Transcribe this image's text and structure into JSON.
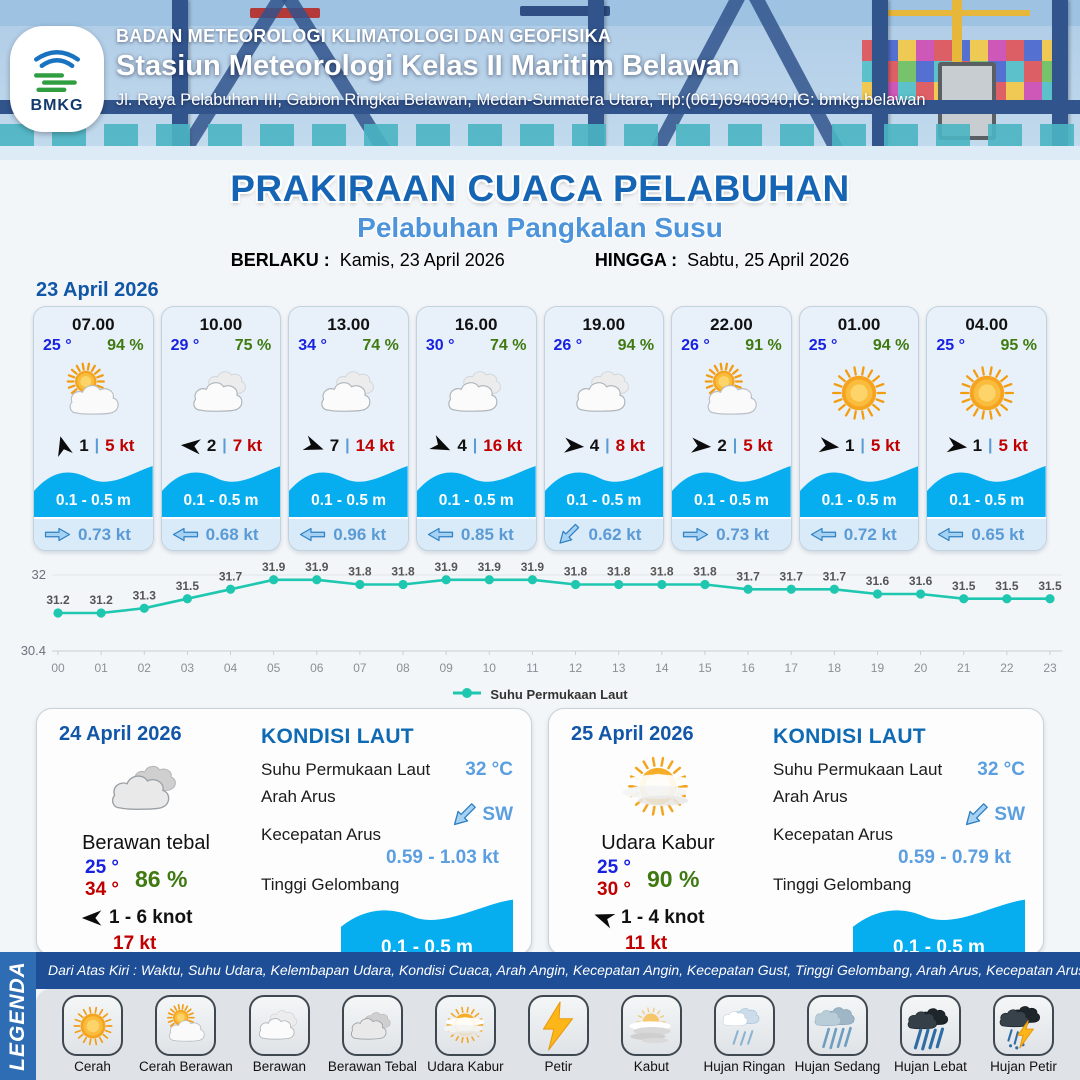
{
  "header": {
    "agency": "BADAN METEOROLOGI KLIMATOLOGI DAN GEOFISIKA",
    "station": "Stasiun Meteorologi Kelas II Maritim Belawan",
    "address": "Jl. Raya Pelabuhan III, Gabion Ringkai Belawan, Medan-Sumatera Utara, Tlp:(061)6940340,IG: bmkg.belawan",
    "logo_text": "BMKG"
  },
  "title": {
    "main": "PRAKIRAAN CUACA PELABUHAN",
    "subtitle": "Pelabuhan Pangkalan Susu",
    "berlaku_label": "BERLAKU :",
    "berlaku_value": "Kamis, 23 April 2026",
    "hingga_label": "HINGGA :",
    "hingga_value": "Sabtu, 25 April 2026"
  },
  "forecast": {
    "date": "23 April 2026",
    "sep": "|",
    "cards": [
      {
        "time": "07.00",
        "temp": "25 °",
        "humidity": "94 %",
        "icon": "cerah-berawan",
        "wind_dir_deg": -105,
        "wind_speed": "1",
        "gust": "5 kt",
        "wave": "0.1 - 0.5 m",
        "current_dir": "right",
        "current": "0.73 kt"
      },
      {
        "time": "10.00",
        "temp": "29 °",
        "humidity": "75 %",
        "icon": "berawan",
        "wind_dir_deg": 185,
        "wind_speed": "2",
        "gust": "7 kt",
        "wave": "0.1 - 0.5 m",
        "current_dir": "left",
        "current": "0.68 kt"
      },
      {
        "time": "13.00",
        "temp": "34 °",
        "humidity": "74 %",
        "icon": "berawan",
        "wind_dir_deg": 20,
        "wind_speed": "7",
        "gust": "14 kt",
        "wave": "0.1 - 0.5 m",
        "current_dir": "left",
        "current": "0.96 kt"
      },
      {
        "time": "16.00",
        "temp": "30 °",
        "humidity": "74 %",
        "icon": "berawan",
        "wind_dir_deg": 25,
        "wind_speed": "4",
        "gust": "16 kt",
        "wave": "0.1 - 0.5 m",
        "current_dir": "left",
        "current": "0.85 kt"
      },
      {
        "time": "19.00",
        "temp": "26 °",
        "humidity": "94 %",
        "icon": "berawan",
        "wind_dir_deg": 5,
        "wind_speed": "4",
        "gust": "8 kt",
        "wave": "0.1 - 0.5 m",
        "current_dir": "down-left",
        "current": "0.62 kt"
      },
      {
        "time": "22.00",
        "temp": "26 °",
        "humidity": "91 %",
        "icon": "cerah-berawan",
        "wind_dir_deg": 5,
        "wind_speed": "2",
        "gust": "5 kt",
        "wave": "0.1 - 0.5 m",
        "current_dir": "right",
        "current": "0.73 kt"
      },
      {
        "time": "01.00",
        "temp": "25 °",
        "humidity": "94 %",
        "icon": "cerah",
        "wind_dir_deg": 8,
        "wind_speed": "1",
        "gust": "5 kt",
        "wave": "0.1 - 0.5 m",
        "current_dir": "left",
        "current": "0.72 kt"
      },
      {
        "time": "04.00",
        "temp": "25 °",
        "humidity": "95 %",
        "icon": "cerah",
        "wind_dir_deg": 8,
        "wind_speed": "1",
        "gust": "5 kt",
        "wave": "0.1 - 0.5 m",
        "current_dir": "left",
        "current": "0.65 kt"
      }
    ]
  },
  "chart_data": {
    "type": "line",
    "x": [
      "00",
      "01",
      "02",
      "03",
      "04",
      "05",
      "06",
      "07",
      "08",
      "09",
      "10",
      "11",
      "12",
      "13",
      "14",
      "15",
      "16",
      "17",
      "18",
      "19",
      "20",
      "21",
      "22",
      "23"
    ],
    "series": [
      {
        "name": "Suhu Permukaan Laut",
        "values": [
          31.2,
          31.2,
          31.3,
          31.5,
          31.7,
          31.9,
          31.9,
          31.8,
          31.8,
          31.9,
          31.9,
          31.9,
          31.8,
          31.8,
          31.8,
          31.8,
          31.7,
          31.7,
          31.7,
          31.6,
          31.6,
          31.5,
          31.5,
          31.5
        ],
        "color": "#1fc7b0"
      }
    ],
    "ylim": [
      30.4,
      32
    ],
    "yticks": [
      "32",
      "30.4"
    ],
    "grid": true,
    "legend_position": "bottom",
    "point_labels": true
  },
  "daily": [
    {
      "date": "24 April 2026",
      "condition": "Berawan tebal",
      "icon": "berawan-tebal",
      "temp_min": "25 °",
      "temp_max": "34 °",
      "humidity": "86 %",
      "wind_dir_deg": 180,
      "wind_range": "1 - 6 knot",
      "gust": "17 kt",
      "sea": {
        "heading": "KONDISI LAUT",
        "sst_label": "Suhu Permukaan Laut",
        "sst": "32 °C",
        "current_dir_label": "Arah Arus",
        "current_dir": "SW",
        "current_dir_deg": 135,
        "current_speed_label": "Kecepatan Arus",
        "current_speed": "0.59 - 1.03 kt",
        "wave_label": "Tinggi Gelombang",
        "wave": "0.1 - 0.5 m"
      }
    },
    {
      "date": "25 April 2026",
      "condition": "Udara Kabur",
      "icon": "udara-kabur",
      "temp_min": "25 °",
      "temp_max": "30 °",
      "humidity": "90 %",
      "wind_dir_deg": 200,
      "wind_range": "1 - 4 knot",
      "gust": "11 kt",
      "sea": {
        "heading": "KONDISI LAUT",
        "sst_label": "Suhu Permukaan Laut",
        "sst": "32 °C",
        "current_dir_label": "Arah Arus",
        "current_dir": "SW",
        "current_dir_deg": 135,
        "current_speed_label": "Kecepatan Arus",
        "current_speed": "0.59 - 0.79 kt",
        "wave_label": "Tinggi Gelombang",
        "wave": "0.1 - 0.5 m"
      }
    }
  ],
  "legend": {
    "title": "LEGENDA",
    "caption": "Dari Atas Kiri : Waktu, Suhu Udara, Kelembapan Udara, Kondisi Cuaca, Arah Angin, Kecepatan Angin, Kecepatan Gust, Tinggi Gelombang, Arah Arus, Kecepatan Arus",
    "items": [
      {
        "label": "Cerah",
        "icon": "cerah"
      },
      {
        "label": "Cerah Berawan",
        "icon": "cerah-berawan"
      },
      {
        "label": "Berawan",
        "icon": "berawan"
      },
      {
        "label": "Berawan Tebal",
        "icon": "berawan-tebal"
      },
      {
        "label": "Udara Kabur",
        "icon": "udara-kabur"
      },
      {
        "label": "Petir",
        "icon": "petir"
      },
      {
        "label": "Kabut",
        "icon": "kabut"
      },
      {
        "label": "Hujan Ringan",
        "icon": "hujan-ringan"
      },
      {
        "label": "Hujan Sedang",
        "icon": "hujan-sedang"
      },
      {
        "label": "Hujan Lebat",
        "icon": "hujan-lebat"
      },
      {
        "label": "Hujan Petir",
        "icon": "hujan-petir"
      }
    ]
  },
  "colors": {
    "accent_blue": "#1565b4",
    "subtitle_blue": "#4d94db",
    "date_blue": "#1256a8",
    "temp_blue": "#1722e0",
    "humidity_green": "#3f7a10",
    "gust_red": "#c00000",
    "wave_blue": "#07aeef",
    "current_blue": "#5b9bd5",
    "chart_teal": "#1fc7b0",
    "navy": "#1d4e96",
    "legend_band_blue": "#2e6db4"
  }
}
